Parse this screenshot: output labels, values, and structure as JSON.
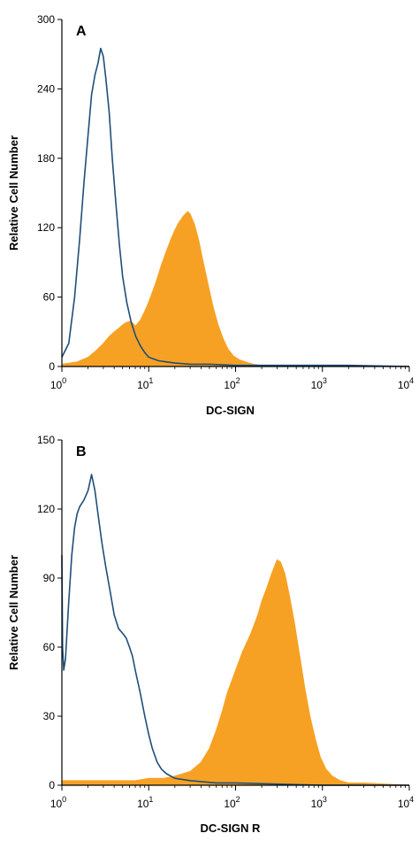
{
  "chart_data": [
    {
      "type": "area",
      "panel_label": "A",
      "xlabel": "DC-SIGN",
      "ylabel": "Relative Cell Number",
      "xscale": "log",
      "xlim": [
        1,
        10000
      ],
      "ylim": [
        0,
        300
      ],
      "yticks": [
        "0",
        "60",
        "120",
        "180",
        "240",
        "300"
      ],
      "xticks": [
        {
          "base": "10",
          "exp": "0"
        },
        {
          "base": "10",
          "exp": "1"
        },
        {
          "base": "10",
          "exp": "2"
        },
        {
          "base": "10",
          "exp": "3"
        },
        {
          "base": "10",
          "exp": "4"
        }
      ],
      "grid": false,
      "series": [
        {
          "kind": "outline",
          "color": "#1f4e79",
          "points": [
            [
              1.0,
              8
            ],
            [
              1.2,
              20
            ],
            [
              1.4,
              60
            ],
            [
              1.6,
              110
            ],
            [
              1.8,
              160
            ],
            [
              2.0,
              200
            ],
            [
              2.2,
              235
            ],
            [
              2.4,
              252
            ],
            [
              2.6,
              262
            ],
            [
              2.8,
              275
            ],
            [
              3.0,
              268
            ],
            [
              3.2,
              250
            ],
            [
              3.5,
              220
            ],
            [
              3.8,
              180
            ],
            [
              4.2,
              140
            ],
            [
              4.6,
              105
            ],
            [
              5.0,
              78
            ],
            [
              5.6,
              55
            ],
            [
              6.3,
              38
            ],
            [
              7.1,
              26
            ],
            [
              8.0,
              18
            ],
            [
              9.0,
              12
            ],
            [
              10,
              8
            ],
            [
              13,
              5
            ],
            [
              16,
              4
            ],
            [
              20,
              3
            ],
            [
              30,
              2
            ],
            [
              50,
              2
            ],
            [
              100,
              1
            ],
            [
              300,
              1
            ],
            [
              1000,
              1
            ],
            [
              2000,
              1
            ],
            [
              10000,
              0
            ]
          ]
        },
        {
          "kind": "filled",
          "color": "#f7a124",
          "points": [
            [
              1.0,
              2
            ],
            [
              1.5,
              4
            ],
            [
              2.0,
              8
            ],
            [
              2.5,
              14
            ],
            [
              3.0,
              20
            ],
            [
              3.5,
              26
            ],
            [
              4.0,
              30
            ],
            [
              4.5,
              33
            ],
            [
              5.0,
              36
            ],
            [
              5.5,
              38
            ],
            [
              6.0,
              39
            ],
            [
              6.5,
              38
            ],
            [
              7.0,
              35
            ],
            [
              8.0,
              40
            ],
            [
              9.0,
              48
            ],
            [
              10,
              56
            ],
            [
              12,
              72
            ],
            [
              14,
              88
            ],
            [
              16,
              100
            ],
            [
              18,
              110
            ],
            [
              20,
              118
            ],
            [
              22,
              124
            ],
            [
              25,
              130
            ],
            [
              28,
              134
            ],
            [
              30,
              132
            ],
            [
              34,
              122
            ],
            [
              38,
              108
            ],
            [
              42,
              92
            ],
            [
              48,
              72
            ],
            [
              55,
              52
            ],
            [
              63,
              36
            ],
            [
              72,
              24
            ],
            [
              82,
              15
            ],
            [
              95,
              9
            ],
            [
              110,
              6
            ],
            [
              130,
              4
            ],
            [
              160,
              2
            ],
            [
              200,
              1
            ],
            [
              300,
              1
            ],
            [
              1000,
              0
            ],
            [
              10000,
              0
            ]
          ]
        }
      ]
    },
    {
      "type": "area",
      "panel_label": "B",
      "xlabel": "DC-SIGN R",
      "ylabel": "Relative Cell Number",
      "xscale": "log",
      "xlim": [
        1,
        10000
      ],
      "ylim": [
        0,
        150
      ],
      "yticks": [
        "0",
        "30",
        "60",
        "90",
        "120",
        "150"
      ],
      "xticks": [
        {
          "base": "10",
          "exp": "0"
        },
        {
          "base": "10",
          "exp": "1"
        },
        {
          "base": "10",
          "exp": "2"
        },
        {
          "base": "10",
          "exp": "3"
        },
        {
          "base": "10",
          "exp": "4"
        }
      ],
      "grid": false,
      "series": [
        {
          "kind": "outline",
          "color": "#1f4e79",
          "points": [
            [
              1.0,
              100
            ],
            [
              1.02,
              60
            ],
            [
              1.05,
              50
            ],
            [
              1.1,
              55
            ],
            [
              1.2,
              80
            ],
            [
              1.3,
              100
            ],
            [
              1.4,
              112
            ],
            [
              1.5,
              118
            ],
            [
              1.6,
              121
            ],
            [
              1.8,
              124
            ],
            [
              2.0,
              128
            ],
            [
              2.2,
              135
            ],
            [
              2.4,
              128
            ],
            [
              2.6,
              118
            ],
            [
              2.9,
              105
            ],
            [
              3.2,
              95
            ],
            [
              3.6,
              84
            ],
            [
              4.0,
              74
            ],
            [
              4.5,
              68
            ],
            [
              5.0,
              66
            ],
            [
              5.5,
              64
            ],
            [
              6.0,
              60
            ],
            [
              6.5,
              56
            ],
            [
              7.0,
              50
            ],
            [
              8.0,
              40
            ],
            [
              9.0,
              30
            ],
            [
              10,
              22
            ],
            [
              11,
              16
            ],
            [
              12.5,
              10
            ],
            [
              14,
              7
            ],
            [
              16,
              5
            ],
            [
              20,
              3
            ],
            [
              30,
              2
            ],
            [
              60,
              1
            ],
            [
              100,
              1
            ],
            [
              1000,
              0
            ],
            [
              10000,
              0
            ]
          ]
        },
        {
          "kind": "filled",
          "color": "#f7a124",
          "points": [
            [
              1.0,
              2
            ],
            [
              2,
              2
            ],
            [
              4,
              2
            ],
            [
              7,
              2
            ],
            [
              10,
              3
            ],
            [
              15,
              3
            ],
            [
              20,
              4
            ],
            [
              30,
              6
            ],
            [
              40,
              10
            ],
            [
              50,
              16
            ],
            [
              60,
              24
            ],
            [
              70,
              32
            ],
            [
              80,
              40
            ],
            [
              100,
              50
            ],
            [
              120,
              58
            ],
            [
              150,
              66
            ],
            [
              180,
              74
            ],
            [
              200,
              80
            ],
            [
              230,
              86
            ],
            [
              260,
              92
            ],
            [
              300,
              98
            ],
            [
              330,
              97
            ],
            [
              370,
              92
            ],
            [
              420,
              82
            ],
            [
              480,
              70
            ],
            [
              550,
              56
            ],
            [
              630,
              42
            ],
            [
              720,
              30
            ],
            [
              830,
              20
            ],
            [
              950,
              12
            ],
            [
              1100,
              7
            ],
            [
              1300,
              4
            ],
            [
              1600,
              2
            ],
            [
              2000,
              1
            ],
            [
              3000,
              1
            ],
            [
              10000,
              0
            ]
          ]
        }
      ]
    }
  ]
}
